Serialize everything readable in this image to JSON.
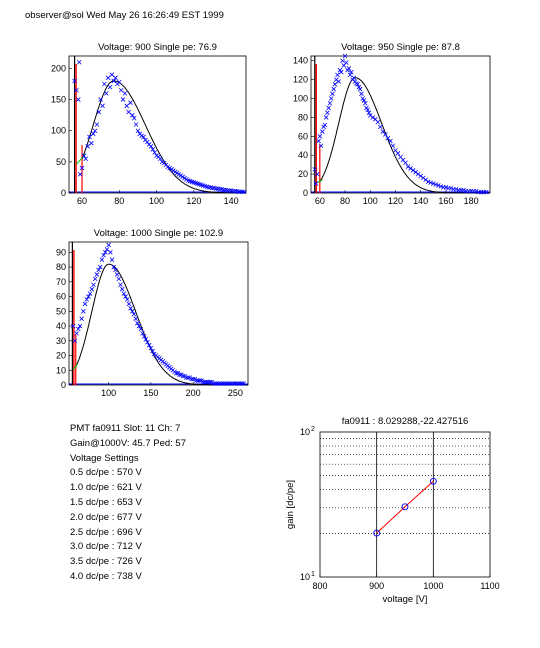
{
  "header": "observer@sol Wed May 26 16:26:49 EST 1999",
  "colors": {
    "data": "#0000ff",
    "fit": "#000000",
    "threshold": "#ff0000",
    "rise": "#00cc00",
    "gain_line": "#ff0000"
  },
  "info": {
    "pmt": "PMT fa0911 Slot: 11 Ch: 7",
    "gain": "Gain@1000V: 45.7 Ped: 57",
    "settings_title": "Voltage Settings",
    "settings": [
      "0.5 dc/pe : 570 V",
      "1.0 dc/pe : 621 V",
      "1.5 dc/pe : 653 V",
      "2.0 dc/pe : 677 V",
      "2.5 dc/pe : 696 V",
      "3.0 dc/pe : 712 V",
      "3.5 dc/pe : 726 V",
      "4.0 dc/pe : 738 V"
    ]
  },
  "chart_data": [
    {
      "type": "scatter",
      "title": "Voltage: 900 Single pe: 76.9",
      "xlim": [
        53,
        148
      ],
      "ylim": [
        0,
        220
      ],
      "xticks": [
        60,
        80,
        100,
        120,
        140
      ],
      "yticks": [
        0,
        50,
        100,
        150,
        200
      ],
      "threshold_x": [
        56,
        60
      ],
      "fit": {
        "peak_x": 77,
        "peak_y": 180,
        "sigma_left": 11,
        "sigma_right": 17
      },
      "points": [
        [
          56,
          180
        ],
        [
          57,
          165
        ],
        [
          58,
          150
        ],
        [
          58.5,
          210
        ],
        [
          59,
          30
        ],
        [
          60,
          40
        ],
        [
          61,
          60
        ],
        [
          62,
          55
        ],
        [
          63,
          75
        ],
        [
          64,
          90
        ],
        [
          65,
          80
        ],
        [
          66,
          95
        ],
        [
          67,
          100
        ],
        [
          68,
          110
        ],
        [
          69,
          130
        ],
        [
          70,
          150
        ],
        [
          71,
          140
        ],
        [
          72,
          175
        ],
        [
          73,
          160
        ],
        [
          74,
          185
        ],
        [
          75,
          170
        ],
        [
          76,
          190
        ],
        [
          77,
          180
        ],
        [
          78,
          185
        ],
        [
          79,
          175
        ],
        [
          80,
          178
        ],
        [
          81,
          165
        ],
        [
          82,
          150
        ],
        [
          83,
          160
        ],
        [
          84,
          140
        ],
        [
          85,
          130
        ],
        [
          86,
          145
        ],
        [
          87,
          125
        ],
        [
          88,
          120
        ],
        [
          89,
          110
        ],
        [
          90,
          100
        ],
        [
          91,
          95
        ],
        [
          92,
          92
        ],
        [
          93,
          90
        ],
        [
          94,
          85
        ],
        [
          95,
          82
        ],
        [
          96,
          78
        ],
        [
          97,
          75
        ],
        [
          98,
          70
        ],
        [
          99,
          65
        ],
        [
          100,
          60
        ],
        [
          101,
          58
        ],
        [
          102,
          55
        ],
        [
          103,
          50
        ],
        [
          104,
          48
        ],
        [
          105,
          45
        ],
        [
          106,
          42
        ],
        [
          107,
          40
        ],
        [
          108,
          38
        ],
        [
          109,
          36
        ],
        [
          110,
          34
        ],
        [
          111,
          32
        ],
        [
          112,
          30
        ],
        [
          113,
          28
        ],
        [
          114,
          26
        ],
        [
          115,
          24
        ],
        [
          116,
          22
        ],
        [
          117,
          20
        ],
        [
          118,
          19
        ],
        [
          119,
          18
        ],
        [
          120,
          17
        ],
        [
          121,
          16
        ],
        [
          122,
          15
        ],
        [
          123,
          14
        ],
        [
          124,
          13
        ],
        [
          125,
          12
        ],
        [
          126,
          11
        ],
        [
          127,
          10
        ],
        [
          128,
          9
        ],
        [
          129,
          9
        ],
        [
          130,
          8
        ],
        [
          131,
          8
        ],
        [
          132,
          7
        ],
        [
          133,
          7
        ],
        [
          134,
          6
        ],
        [
          135,
          6
        ],
        [
          136,
          5
        ],
        [
          137,
          5
        ],
        [
          138,
          4
        ],
        [
          139,
          4
        ],
        [
          140,
          4
        ],
        [
          141,
          3
        ],
        [
          142,
          3
        ],
        [
          143,
          3
        ],
        [
          144,
          2
        ],
        [
          145,
          2
        ],
        [
          146,
          2
        ],
        [
          147,
          2
        ]
      ]
    },
    {
      "type": "scatter",
      "title": "Voltage: 950 Single pe: 87.8",
      "xlim": [
        53,
        195
      ],
      "ylim": [
        0,
        145
      ],
      "xticks": [
        60,
        80,
        100,
        120,
        140,
        160,
        180
      ],
      "yticks": [
        0,
        20,
        40,
        60,
        80,
        100,
        120,
        140
      ],
      "threshold_x": [
        56,
        60
      ],
      "fit": {
        "peak_x": 88,
        "peak_y": 122,
        "sigma_left": 13,
        "sigma_right": 21
      },
      "points": [
        [
          56,
          25
        ],
        [
          57,
          10
        ],
        [
          58,
          20
        ],
        [
          59,
          55
        ],
        [
          60,
          60
        ],
        [
          61,
          50
        ],
        [
          62,
          65
        ],
        [
          63,
          70
        ],
        [
          64,
          72
        ],
        [
          65,
          80
        ],
        [
          66,
          85
        ],
        [
          67,
          90
        ],
        [
          68,
          95
        ],
        [
          69,
          100
        ],
        [
          70,
          105
        ],
        [
          71,
          110
        ],
        [
          72,
          115
        ],
        [
          73,
          120
        ],
        [
          74,
          125
        ],
        [
          75,
          118
        ],
        [
          76,
          130
        ],
        [
          77,
          128
        ],
        [
          78,
          140
        ],
        [
          79,
          135
        ],
        [
          80,
          145
        ],
        [
          81,
          138
        ],
        [
          82,
          130
        ],
        [
          83,
          132
        ],
        [
          84,
          125
        ],
        [
          85,
          128
        ],
        [
          86,
          120
        ],
        [
          87,
          122
        ],
        [
          88,
          118
        ],
        [
          89,
          116
        ],
        [
          90,
          115
        ],
        [
          91,
          112
        ],
        [
          92,
          110
        ],
        [
          93,
          105
        ],
        [
          94,
          100
        ],
        [
          95,
          98
        ],
        [
          96,
          95
        ],
        [
          97,
          90
        ],
        [
          98,
          88
        ],
        [
          99,
          85
        ],
        [
          100,
          82
        ],
        [
          102,
          80
        ],
        [
          104,
          78
        ],
        [
          106,
          75
        ],
        [
          108,
          70
        ],
        [
          110,
          65
        ],
        [
          112,
          62
        ],
        [
          114,
          58
        ],
        [
          116,
          55
        ],
        [
          118,
          50
        ],
        [
          120,
          45
        ],
        [
          122,
          42
        ],
        [
          124,
          38
        ],
        [
          126,
          35
        ],
        [
          128,
          32
        ],
        [
          130,
          28
        ],
        [
          132,
          26
        ],
        [
          134,
          24
        ],
        [
          136,
          22
        ],
        [
          138,
          20
        ],
        [
          140,
          18
        ],
        [
          142,
          16
        ],
        [
          144,
          14
        ],
        [
          146,
          12
        ],
        [
          148,
          11
        ],
        [
          150,
          10
        ],
        [
          152,
          9
        ],
        [
          154,
          8
        ],
        [
          156,
          7
        ],
        [
          158,
          6
        ],
        [
          160,
          6
        ],
        [
          162,
          5
        ],
        [
          164,
          5
        ],
        [
          166,
          4
        ],
        [
          168,
          4
        ],
        [
          170,
          3
        ],
        [
          172,
          3
        ],
        [
          174,
          3
        ],
        [
          176,
          2
        ],
        [
          178,
          2
        ],
        [
          180,
          2
        ],
        [
          182,
          2
        ],
        [
          184,
          2
        ],
        [
          186,
          1
        ],
        [
          188,
          1
        ],
        [
          190,
          1
        ],
        [
          192,
          1
        ]
      ]
    },
    {
      "type": "scatter",
      "title": "Voltage: 1000 Single pe: 102.9",
      "xlim": [
        53,
        265
      ],
      "ylim": [
        0,
        97
      ],
      "xticks": [
        100,
        150,
        200,
        250
      ],
      "yticks": [
        0,
        10,
        20,
        30,
        40,
        50,
        60,
        70,
        80,
        90
      ],
      "threshold_x": [
        57,
        61
      ],
      "fit": {
        "peak_x": 100,
        "peak_y": 82,
        "sigma_left": 20,
        "sigma_right": 32
      },
      "points": [
        [
          58,
          40
        ],
        [
          60,
          30
        ],
        [
          62,
          35
        ],
        [
          64,
          38
        ],
        [
          66,
          40
        ],
        [
          68,
          45
        ],
        [
          70,
          50
        ],
        [
          72,
          55
        ],
        [
          74,
          58
        ],
        [
          76,
          60
        ],
        [
          78,
          62
        ],
        [
          80,
          65
        ],
        [
          82,
          68
        ],
        [
          84,
          72
        ],
        [
          86,
          75
        ],
        [
          88,
          78
        ],
        [
          90,
          80
        ],
        [
          92,
          85
        ],
        [
          94,
          88
        ],
        [
          96,
          90
        ],
        [
          98,
          92
        ],
        [
          100,
          95
        ],
        [
          102,
          90
        ],
        [
          104,
          85
        ],
        [
          106,
          80
        ],
        [
          108,
          78
        ],
        [
          110,
          75
        ],
        [
          112,
          72
        ],
        [
          114,
          68
        ],
        [
          116,
          65
        ],
        [
          118,
          62
        ],
        [
          120,
          60
        ],
        [
          122,
          58
        ],
        [
          124,
          55
        ],
        [
          126,
          52
        ],
        [
          128,
          50
        ],
        [
          130,
          48
        ],
        [
          132,
          45
        ],
        [
          134,
          42
        ],
        [
          136,
          40
        ],
        [
          138,
          38
        ],
        [
          140,
          35
        ],
        [
          142,
          33
        ],
        [
          144,
          31
        ],
        [
          146,
          29
        ],
        [
          148,
          27
        ],
        [
          150,
          25
        ],
        [
          152,
          23
        ],
        [
          154,
          21
        ],
        [
          156,
          20
        ],
        [
          158,
          19
        ],
        [
          160,
          18
        ],
        [
          162,
          17
        ],
        [
          164,
          16
        ],
        [
          166,
          15
        ],
        [
          168,
          14
        ],
        [
          170,
          13
        ],
        [
          172,
          12
        ],
        [
          174,
          11
        ],
        [
          176,
          10
        ],
        [
          178,
          9
        ],
        [
          180,
          8
        ],
        [
          182,
          8
        ],
        [
          184,
          7
        ],
        [
          186,
          7
        ],
        [
          188,
          6
        ],
        [
          190,
          6
        ],
        [
          192,
          5
        ],
        [
          194,
          5
        ],
        [
          196,
          5
        ],
        [
          198,
          4
        ],
        [
          200,
          4
        ],
        [
          202,
          4
        ],
        [
          204,
          3
        ],
        [
          206,
          3
        ],
        [
          208,
          3
        ],
        [
          210,
          3
        ],
        [
          212,
          2
        ],
        [
          214,
          2
        ],
        [
          216,
          2
        ],
        [
          218,
          2
        ],
        [
          220,
          2
        ],
        [
          222,
          2
        ],
        [
          224,
          1
        ],
        [
          226,
          1
        ],
        [
          228,
          1
        ],
        [
          230,
          1
        ],
        [
          232,
          1
        ],
        [
          234,
          1
        ],
        [
          236,
          1
        ],
        [
          238,
          1
        ],
        [
          240,
          1
        ],
        [
          242,
          1
        ],
        [
          244,
          1
        ],
        [
          246,
          1
        ],
        [
          248,
          1
        ],
        [
          250,
          1
        ],
        [
          252,
          1
        ],
        [
          254,
          1
        ],
        [
          256,
          1
        ],
        [
          258,
          1
        ],
        [
          260,
          1
        ]
      ]
    },
    {
      "type": "line",
      "title": "fa0911 : 8.029288,-22.427516",
      "xlabel": "voltage [V]",
      "ylabel": "gain [dc/pe]",
      "xlim": [
        800,
        1100
      ],
      "ylim": [
        10,
        100
      ],
      "y_scale": "log",
      "xticks": [
        800,
        900,
        1000,
        1100
      ],
      "ytick_labels": [
        "10",
        "10"
      ],
      "ytick_sup": [
        "1",
        "2"
      ],
      "vlines": [
        900,
        1000
      ],
      "hgrid": [
        20,
        30,
        40,
        50,
        60,
        70,
        80,
        90
      ],
      "points": [
        [
          900,
          20.1
        ],
        [
          950,
          30.5
        ],
        [
          1000,
          45.7
        ]
      ]
    }
  ]
}
